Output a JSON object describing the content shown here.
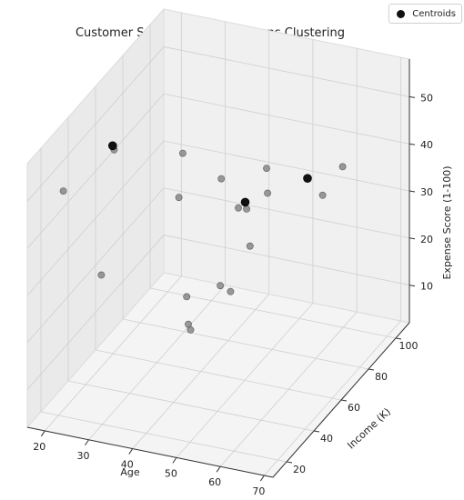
{
  "chart_data": {
    "type": "scatter3d",
    "title": "Customer Segmentation - K-Means Clustering",
    "xlabel": "Age",
    "ylabel": "Income (K)",
    "zlabel": "Expense Score (1-100)",
    "xlim": [
      16,
      72
    ],
    "ylim": [
      10,
      110
    ],
    "zlim": [
      2,
      58
    ],
    "x_ticks": [
      20,
      30,
      40,
      50,
      60,
      70
    ],
    "y_ticks": [
      20,
      40,
      60,
      80,
      100
    ],
    "z_ticks": [
      10,
      20,
      30,
      40,
      50
    ],
    "grid": true,
    "legend": {
      "position": "top-right",
      "entries": [
        "Centroids"
      ]
    },
    "colors": {
      "point": "#7a7a7a",
      "centroid": "#111111"
    },
    "series": [
      {
        "kind": "customers",
        "points": [
          {
            "x": 18,
            "y": 30,
            "z": 46
          },
          {
            "x": 22,
            "y": 45,
            "z": 24
          },
          {
            "x": 25,
            "y": 95,
            "z": 34
          },
          {
            "x": 28,
            "y": 35,
            "z": 55
          },
          {
            "x": 33,
            "y": 110,
            "z": 19
          },
          {
            "x": 35,
            "y": 60,
            "z": 38
          },
          {
            "x": 38,
            "y": 100,
            "z": 23
          },
          {
            "x": 40,
            "y": 75,
            "z": 38
          },
          {
            "x": 43,
            "y": 40,
            "z": 25
          },
          {
            "x": 44,
            "y": 38,
            "z": 20
          },
          {
            "x": 45,
            "y": 80,
            "z": 23
          },
          {
            "x": 46,
            "y": 55,
            "z": 23
          },
          {
            "x": 47,
            "y": 30,
            "z": 22
          },
          {
            "x": 49,
            "y": 80,
            "z": 35
          },
          {
            "x": 53,
            "y": 40,
            "z": 28
          },
          {
            "x": 55,
            "y": 60,
            "z": 48
          },
          {
            "x": 60,
            "y": 85,
            "z": 35
          },
          {
            "x": 63,
            "y": 90,
            "z": 40
          }
        ]
      },
      {
        "name": "Centroids",
        "kind": "centroids",
        "points": [
          {
            "x": 23,
            "y": 50,
            "z": 50
          },
          {
            "x": 47,
            "y": 70,
            "z": 36
          },
          {
            "x": 55,
            "y": 90,
            "z": 36
          }
        ]
      }
    ]
  }
}
